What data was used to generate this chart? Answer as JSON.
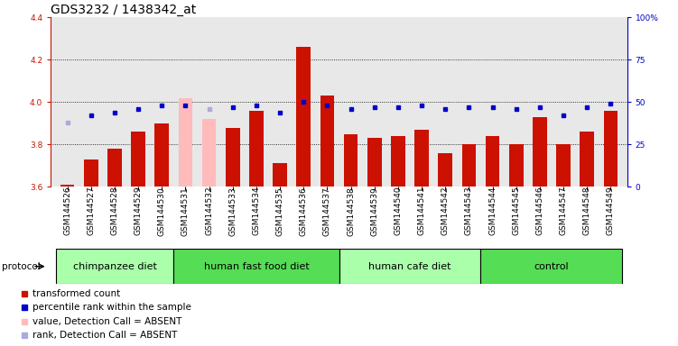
{
  "title": "GDS3232 / 1438342_at",
  "samples": [
    "GSM144526",
    "GSM144527",
    "GSM144528",
    "GSM144529",
    "GSM144530",
    "GSM144531",
    "GSM144532",
    "GSM144533",
    "GSM144534",
    "GSM144535",
    "GSM144536",
    "GSM144537",
    "GSM144538",
    "GSM144539",
    "GSM144540",
    "GSM144541",
    "GSM144542",
    "GSM144543",
    "GSM144544",
    "GSM144545",
    "GSM144546",
    "GSM144547",
    "GSM144548",
    "GSM144549"
  ],
  "bar_values": [
    3.61,
    3.73,
    3.78,
    3.86,
    3.9,
    4.02,
    3.92,
    3.88,
    3.96,
    3.71,
    4.26,
    4.03,
    3.85,
    3.83,
    3.84,
    3.87,
    3.76,
    3.8,
    3.84,
    3.8,
    3.93,
    3.8,
    3.86,
    3.96
  ],
  "rank_values": [
    38,
    42,
    44,
    46,
    48,
    48,
    46,
    47,
    48,
    44,
    50,
    48,
    46,
    47,
    47,
    48,
    46,
    47,
    47,
    46,
    47,
    42,
    47,
    49
  ],
  "absent_bars": [
    5,
    6
  ],
  "absent_ranks": [
    0,
    6
  ],
  "groups": [
    {
      "label": "chimpanzee diet",
      "start": 0,
      "end": 5,
      "color": "#aaffaa"
    },
    {
      "label": "human fast food diet",
      "start": 5,
      "end": 12,
      "color": "#55dd55"
    },
    {
      "label": "human cafe diet",
      "start": 12,
      "end": 18,
      "color": "#aaffaa"
    },
    {
      "label": "control",
      "start": 18,
      "end": 24,
      "color": "#55dd55"
    }
  ],
  "bar_color": "#cc1100",
  "bar_absent_color": "#ffbbbb",
  "rank_color": "#0000cc",
  "rank_absent_color": "#aaaadd",
  "bg_color": "#e8e8e8",
  "ylim_left": [
    3.6,
    4.4
  ],
  "ylim_right": [
    0,
    100
  ],
  "yticks_left": [
    3.6,
    3.8,
    4.0,
    4.2,
    4.4
  ],
  "yticks_right": [
    0,
    25,
    50,
    75,
    100
  ],
  "grid_values": [
    3.8,
    4.0,
    4.2
  ],
  "title_fontsize": 10,
  "tick_fontsize": 6.5,
  "label_fontsize": 7.5,
  "group_fontsize": 8
}
